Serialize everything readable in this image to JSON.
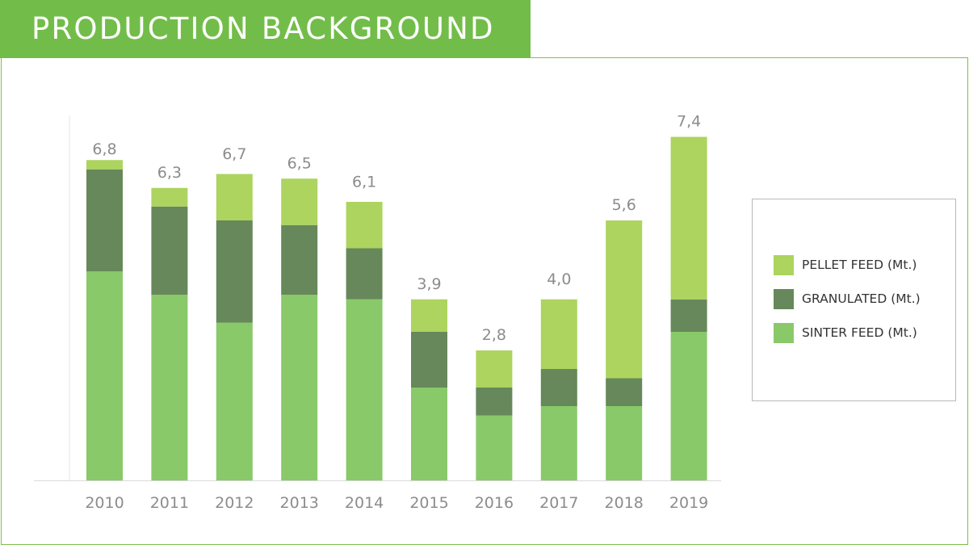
{
  "header": {
    "title": "PRODUCTION BACKGROUND"
  },
  "colors": {
    "accent": "#72bd49",
    "pellet_feed": "#acd45f",
    "granulated": "#66885a",
    "sinter_feed": "#89c96a",
    "axis_text": "#8c8c8c"
  },
  "chart_data": {
    "type": "bar",
    "stacked": true,
    "title": "",
    "xlabel": "",
    "ylabel": "",
    "categories": [
      "2010",
      "2011",
      "2012",
      "2013",
      "2014",
      "2015",
      "2016",
      "2017",
      "2018",
      "2019"
    ],
    "series": [
      {
        "name": "SINTER FEED (Mt.)",
        "color": "#89c96a",
        "values": [
          4.5,
          4.0,
          3.4,
          4.0,
          3.9,
          2.0,
          1.4,
          1.6,
          1.6,
          3.2
        ]
      },
      {
        "name": "GRANULATED (Mt.)",
        "color": "#66885a",
        "values": [
          2.2,
          1.9,
          2.2,
          1.5,
          1.1,
          1.2,
          0.6,
          0.8,
          0.6,
          0.7
        ]
      },
      {
        "name": "PELLET FEED (Mt.)",
        "color": "#acd45f",
        "values": [
          0.2,
          0.4,
          1.0,
          1.0,
          1.0,
          0.7,
          0.8,
          1.5,
          3.4,
          3.5
        ]
      }
    ],
    "totals_labels": [
      "6,8",
      "6,3",
      "6,7",
      "6,5",
      "6,1",
      "3,9",
      "2,8",
      "4,0",
      "5,6",
      "7,4"
    ],
    "totals": [
      6.8,
      6.3,
      6.7,
      6.5,
      6.1,
      3.9,
      2.8,
      4.0,
      5.6,
      7.4
    ],
    "ylim": [
      0,
      8
    ],
    "grid": false,
    "legend_position": "right",
    "legend_order": [
      "PELLET FEED (Mt.)",
      "GRANULATED (Mt.)",
      "SINTER FEED (Mt.)"
    ]
  }
}
